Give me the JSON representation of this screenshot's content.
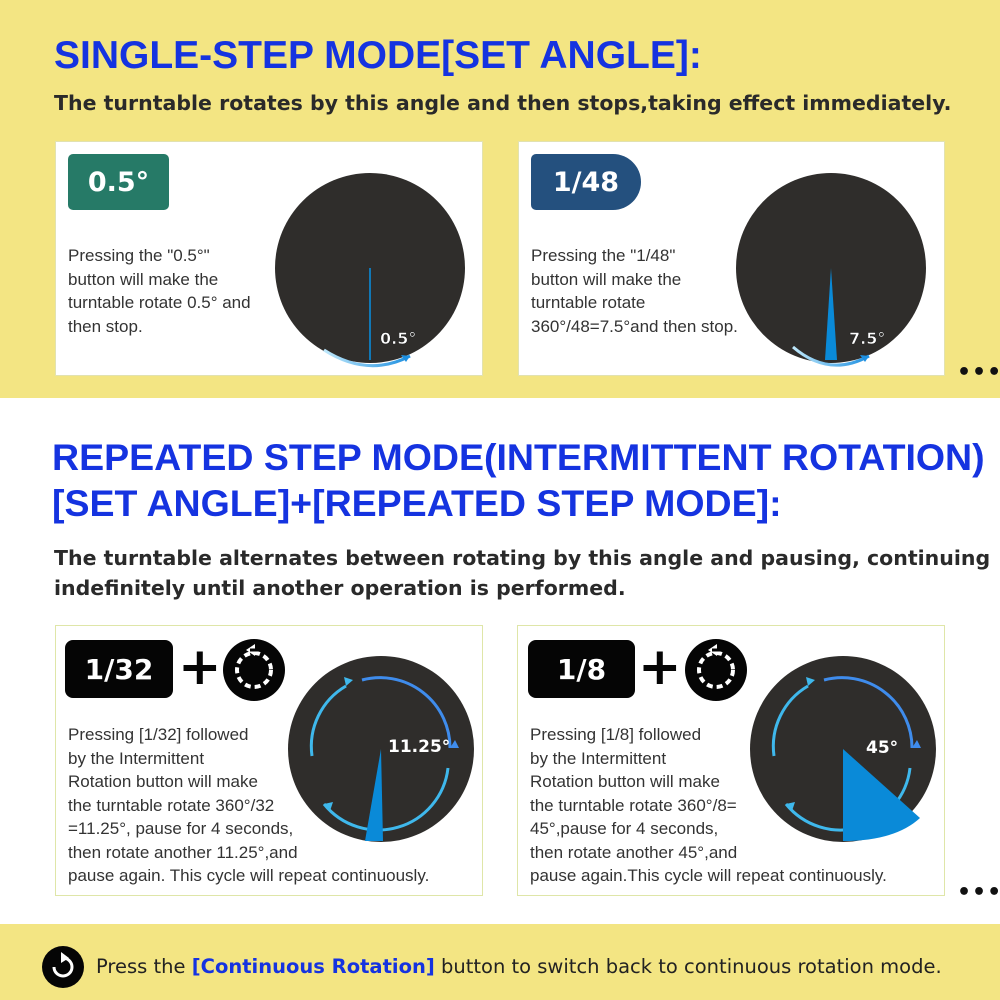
{
  "single": {
    "title": "SINGLE-STEP MODE[SET ANGLE]:",
    "subtitle": "The turntable rotates by this angle and then stops,taking effect immediately.",
    "card1": {
      "chip": "0.5°",
      "chip_color": "#267a67",
      "lines": [
        "Pressing the \"0.5°\"",
        "button will make the",
        "turntable rotate 0.5° and",
        "then stop."
      ],
      "angle_label": "0.5°"
    },
    "card2": {
      "chip": "1/48",
      "chip_color": "#24507e",
      "lines": [
        "Pressing the \"1/48\"",
        "button will make the",
        "turntable rotate",
        "360°/48=7.5°and then stop."
      ],
      "angle_label": "7.5°"
    },
    "more": "•••"
  },
  "repeated": {
    "title_line1": "REPEATED STEP MODE(INTERMITTENT ROTATION)",
    "title_line2": "[SET ANGLE]+[REPEATED STEP MODE]:",
    "subtitle_line1": "The turntable alternates between rotating by this angle and pausing, continuing",
    "subtitle_line2": "indefinitely until another operation is performed.",
    "card1": {
      "chip": "1/32",
      "plus": "+",
      "lines": [
        "Pressing [1/32] followed",
        "by the Intermittent",
        "Rotation button will make",
        "the turntable rotate 360°/32",
        "=11.25°, pause for 4 seconds,",
        "then rotate another 11.25°,and",
        "pause again. This cycle will repeat continuously."
      ],
      "angle_label": "11.25°"
    },
    "card2": {
      "chip": "1/8",
      "plus": "+",
      "lines": [
        "Pressing [1/8] followed",
        "by the Intermittent",
        "Rotation button will make",
        "the turntable rotate 360°/8=",
        "45°,pause for 4 seconds,",
        "then rotate another 45°,and",
        "pause again.This cycle will repeat continuously."
      ],
      "angle_label": "45°"
    },
    "more": "•••"
  },
  "footer": {
    "prefix": "Press the ",
    "highlight": "[Continuous Rotation]",
    "suffix": " button to switch back to continuous rotation mode.",
    "icon": "continuous-rotation-icon"
  },
  "colors": {
    "band": "#f3e583",
    "heading_blue": "#1533e0",
    "disc": "#2f2d2b",
    "wedge": "#0a8ad8",
    "arrow": "#3fb8ec"
  }
}
